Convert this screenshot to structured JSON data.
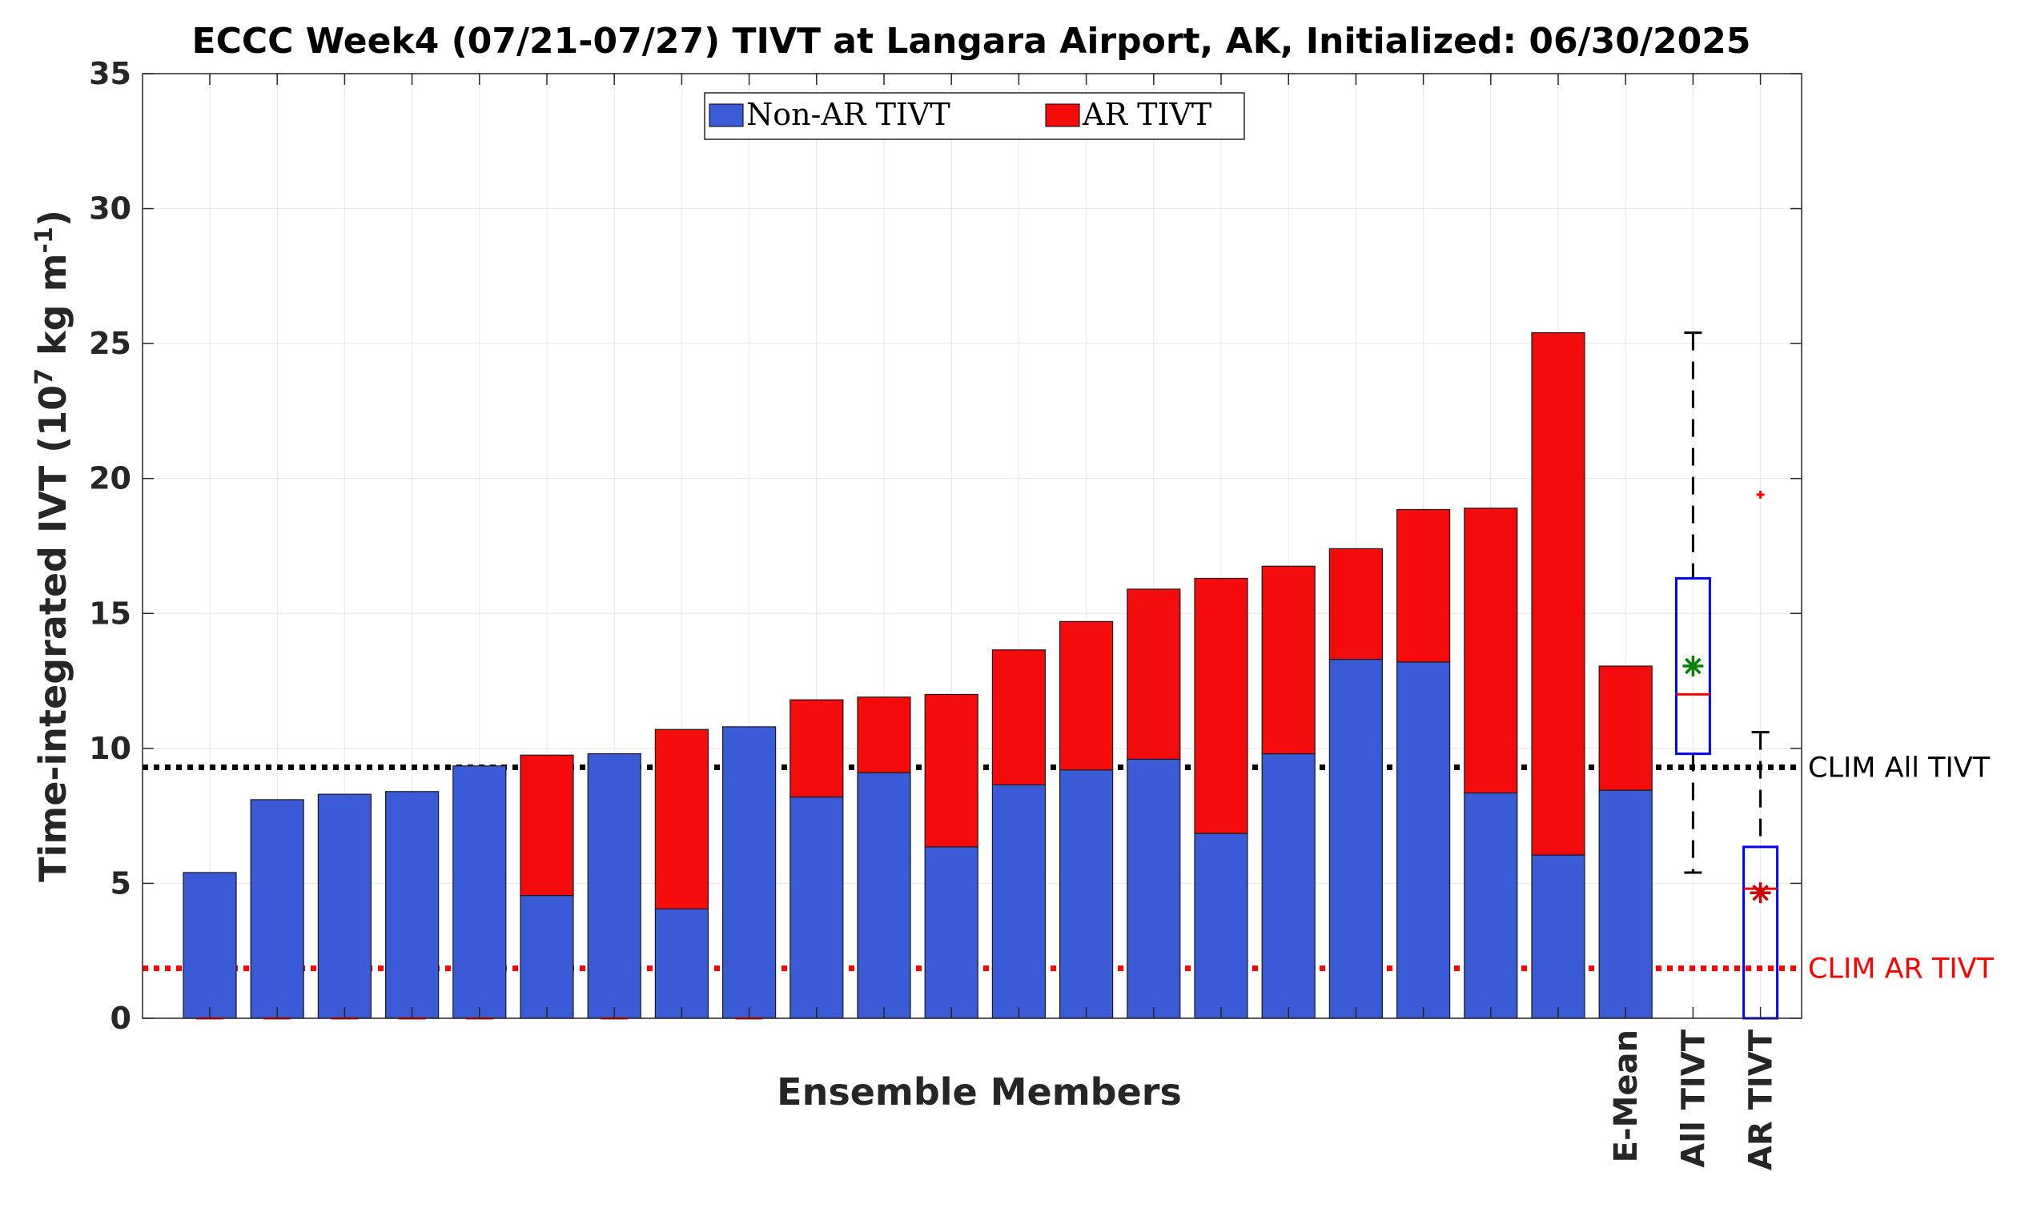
{
  "chart_data": {
    "type": "bar",
    "title": "ECCC Week4 (07/21-07/27) TIVT at Langara Airport, AK, Initialized: 06/30/2025",
    "xlabel": "Ensemble Members",
    "ylabel_main": "Time-integrated IVT (10",
    "ylabel_sup1": "7",
    "ylabel_mid": " kg m",
    "ylabel_sup2": "-1",
    "ylabel_end": ")",
    "ylim": [
      0,
      35
    ],
    "yticks": [
      "0",
      "5",
      "10",
      "15",
      "20",
      "25",
      "30",
      "35"
    ],
    "grid": true,
    "legend_position": "top-center",
    "categories": [
      "",
      "",
      "",
      "",
      "",
      "",
      "",
      "",
      "",
      "",
      "",
      "",
      "",
      "",
      "",
      "",
      "",
      "",
      "",
      "",
      "",
      "E-Mean"
    ],
    "series": [
      {
        "name": "Non-AR TIVT",
        "color": "#3b5bd6",
        "values": [
          5.4,
          8.1,
          8.3,
          8.4,
          9.35,
          4.55,
          9.8,
          4.05,
          10.8,
          8.2,
          9.1,
          6.35,
          8.65,
          9.2,
          9.6,
          6.85,
          9.8,
          13.3,
          13.2,
          8.35,
          6.05,
          8.45
        ]
      },
      {
        "name": "AR TIVT",
        "color": "#f40b0b",
        "values": [
          0,
          0,
          0,
          0,
          0,
          5.2,
          0,
          6.65,
          0,
          3.6,
          2.8,
          5.65,
          5.0,
          5.5,
          6.3,
          9.45,
          6.95,
          4.1,
          5.65,
          10.55,
          19.35,
          4.6
        ]
      }
    ],
    "boxplots": [
      {
        "label": "All TIVT",
        "box_color": "#0000ff",
        "min": 5.4,
        "q1": 9.8,
        "median": 12.0,
        "q3": 16.3,
        "max": 25.4,
        "mean": 13.05,
        "mean_color": "#008000",
        "outliers": []
      },
      {
        "label": "AR TIVT",
        "box_color": "#0000ff",
        "min": 0,
        "q1": 0,
        "median": 4.8,
        "q3": 6.35,
        "max": 10.6,
        "mean": 4.65,
        "mean_color": "#cc0000",
        "outliers": [
          19.4
        ]
      }
    ],
    "reference_lines": [
      {
        "label": "CLIM All TIVT",
        "value": 9.3,
        "color": "#000000"
      },
      {
        "label": "CLIM AR TIVT",
        "value": 1.85,
        "color": "#ff0000"
      }
    ]
  }
}
